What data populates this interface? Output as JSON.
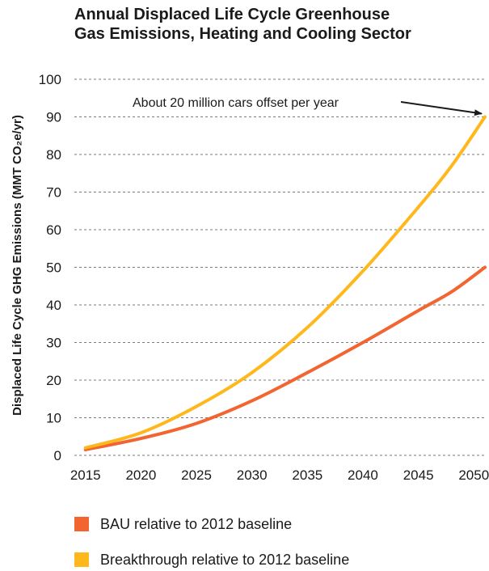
{
  "chart_data": {
    "type": "line",
    "title_lines": [
      "Annual Displaced Life Cycle Greenhouse",
      "Gas Emissions, Heating and Cooling Sector"
    ],
    "ylabel": "Displaced Life Cycle GHG Emissions (MMT CO₂e/yr)",
    "xlabel": "",
    "x_ticks": [
      "2015",
      "2020",
      "2025",
      "2030",
      "2035",
      "2040",
      "2045",
      "2050"
    ],
    "y_ticks": [
      "0",
      "10",
      "20",
      "30",
      "40",
      "50",
      "60",
      "70",
      "80",
      "90",
      "100"
    ],
    "xlim": [
      2014,
      2051
    ],
    "ylim": [
      0,
      100
    ],
    "grid": "horizontal dashed",
    "legend_position": "bottom",
    "series": [
      {
        "name": "BAU relative to 2012 baseline",
        "color": "#f26531",
        "x": [
          2015,
          2020,
          2025,
          2030,
          2035,
          2040,
          2045,
          2048,
          2051
        ],
        "y": [
          1.5,
          4.5,
          8.5,
          14.5,
          22,
          30,
          38.5,
          43.5,
          50
        ]
      },
      {
        "name": "Breakthrough relative to 2012 baseline",
        "color": "#ffb81c",
        "x": [
          2015,
          2020,
          2025,
          2030,
          2035,
          2040,
          2045,
          2048,
          2051
        ],
        "y": [
          2,
          6,
          13,
          22,
          34,
          49,
          66,
          77,
          90
        ]
      }
    ],
    "annotation": {
      "text": "About 20 million cars offset per year",
      "point_x": 2051,
      "point_y": 90
    }
  }
}
